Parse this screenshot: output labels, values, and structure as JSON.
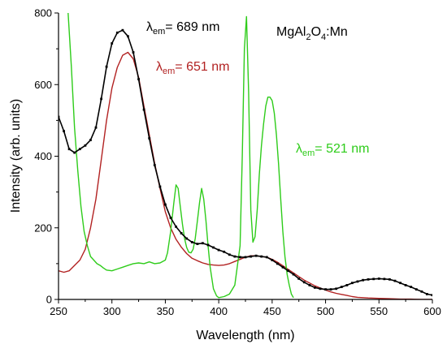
{
  "chart_data": {
    "type": "line",
    "title": "",
    "xlabel": "Wavelength (nm)",
    "ylabel": "Intensity (arb. units)",
    "xlim": [
      250,
      600
    ],
    "ylim": [
      0,
      800
    ],
    "xticks": [
      250,
      300,
      350,
      400,
      450,
      500,
      550,
      600
    ],
    "yticks": [
      0,
      200,
      400,
      600,
      800
    ],
    "grid": false,
    "legend": "none",
    "annotations": {
      "sample": {
        "main": "MgAl",
        "sub1": "2",
        "mid": "O",
        "sub2": "4",
        "tail": ":Mn"
      },
      "label_689": {
        "sym": "λ",
        "sub": "em",
        "text": "= 689 nm",
        "color": "#000000"
      },
      "label_651": {
        "sym": "λ",
        "sub": "em",
        "text": "= 651 nm",
        "color": "#b22222"
      },
      "label_521": {
        "sym": "λ",
        "sub": "em",
        "text": "= 521 nm",
        "color": "#2ecc1a"
      }
    },
    "series": [
      {
        "color": "#000000",
        "marker": "square",
        "x": [
          250,
          255,
          260,
          265,
          270,
          275,
          280,
          285,
          290,
          295,
          300,
          305,
          310,
          315,
          320,
          325,
          330,
          335,
          340,
          345,
          350,
          355,
          360,
          365,
          370,
          375,
          380,
          385,
          390,
          395,
          400,
          405,
          410,
          415,
          420,
          425,
          430,
          435,
          440,
          445,
          450,
          455,
          460,
          465,
          470,
          475,
          480,
          485,
          490,
          495,
          500,
          505,
          510,
          515,
          520,
          525,
          530,
          535,
          540,
          545,
          550,
          555,
          560,
          565,
          570,
          575,
          580,
          585,
          590,
          595,
          600
        ],
        "y": [
          510,
          470,
          420,
          410,
          420,
          430,
          445,
          480,
          560,
          650,
          715,
          745,
          752,
          735,
          690,
          615,
          530,
          450,
          375,
          315,
          265,
          228,
          203,
          185,
          170,
          160,
          155,
          157,
          152,
          145,
          138,
          133,
          125,
          120,
          118,
          118,
          120,
          122,
          120,
          118,
          110,
          100,
          90,
          80,
          70,
          58,
          48,
          40,
          33,
          30,
          28,
          28,
          30,
          35,
          40,
          46,
          50,
          54,
          56,
          57,
          58,
          57,
          56,
          52,
          46,
          40,
          35,
          28,
          22,
          15,
          12
        ]
      },
      {
        "color": "#b22222",
        "marker": "none",
        "x": [
          250,
          255,
          260,
          265,
          270,
          275,
          280,
          285,
          290,
          295,
          300,
          305,
          310,
          315,
          320,
          325,
          330,
          335,
          340,
          345,
          350,
          355,
          360,
          365,
          370,
          375,
          380,
          385,
          390,
          395,
          400,
          405,
          410,
          415,
          420,
          425,
          430,
          435,
          440,
          445,
          450,
          455,
          460,
          465,
          470,
          475,
          480,
          485,
          490,
          495,
          500,
          505,
          510,
          515,
          520,
          525,
          530,
          540,
          550,
          560,
          570,
          580,
          590,
          600
        ],
        "y": [
          80,
          76,
          80,
          95,
          110,
          140,
          200,
          280,
          390,
          500,
          590,
          648,
          682,
          690,
          672,
          620,
          540,
          460,
          380,
          310,
          245,
          200,
          168,
          146,
          128,
          115,
          108,
          102,
          98,
          96,
          95,
          96,
          100,
          106,
          112,
          118,
          122,
          122,
          120,
          118,
          112,
          104,
          94,
          84,
          74,
          64,
          54,
          46,
          38,
          32,
          26,
          21,
          17,
          14,
          11,
          8,
          6,
          4,
          3,
          2,
          1,
          1,
          0,
          0
        ]
      },
      {
        "color": "#2ecc1a",
        "marker": "none",
        "x": [
          259,
          262,
          265,
          268,
          271,
          274,
          277,
          280,
          283,
          286,
          289,
          292,
          295,
          300,
          305,
          310,
          315,
          320,
          325,
          330,
          335,
          340,
          345,
          350,
          352,
          355,
          358,
          360,
          362,
          364,
          366,
          368,
          370,
          372,
          374,
          376,
          378,
          380,
          382,
          384,
          386,
          388,
          390,
          392,
          395,
          398,
          400,
          405,
          410,
          415,
          420,
          422,
          424,
          426,
          428,
          430,
          432,
          434,
          436,
          438,
          440,
          442,
          444,
          446,
          448,
          450,
          452,
          454,
          456,
          458,
          460,
          462,
          464,
          466,
          468,
          470
        ],
        "y": [
          800,
          650,
          480,
          360,
          260,
          190,
          150,
          120,
          110,
          100,
          95,
          88,
          82,
          80,
          85,
          90,
          95,
          100,
          102,
          100,
          105,
          100,
          102,
          110,
          130,
          190,
          270,
          320,
          310,
          260,
          210,
          170,
          145,
          132,
          130,
          140,
          170,
          220,
          270,
          310,
          280,
          220,
          150,
          90,
          30,
          10,
          5,
          8,
          15,
          40,
          150,
          400,
          700,
          790,
          580,
          250,
          160,
          175,
          250,
          350,
          430,
          490,
          540,
          565,
          565,
          555,
          520,
          460,
          380,
          280,
          190,
          120,
          70,
          40,
          15,
          5
        ]
      }
    ]
  }
}
